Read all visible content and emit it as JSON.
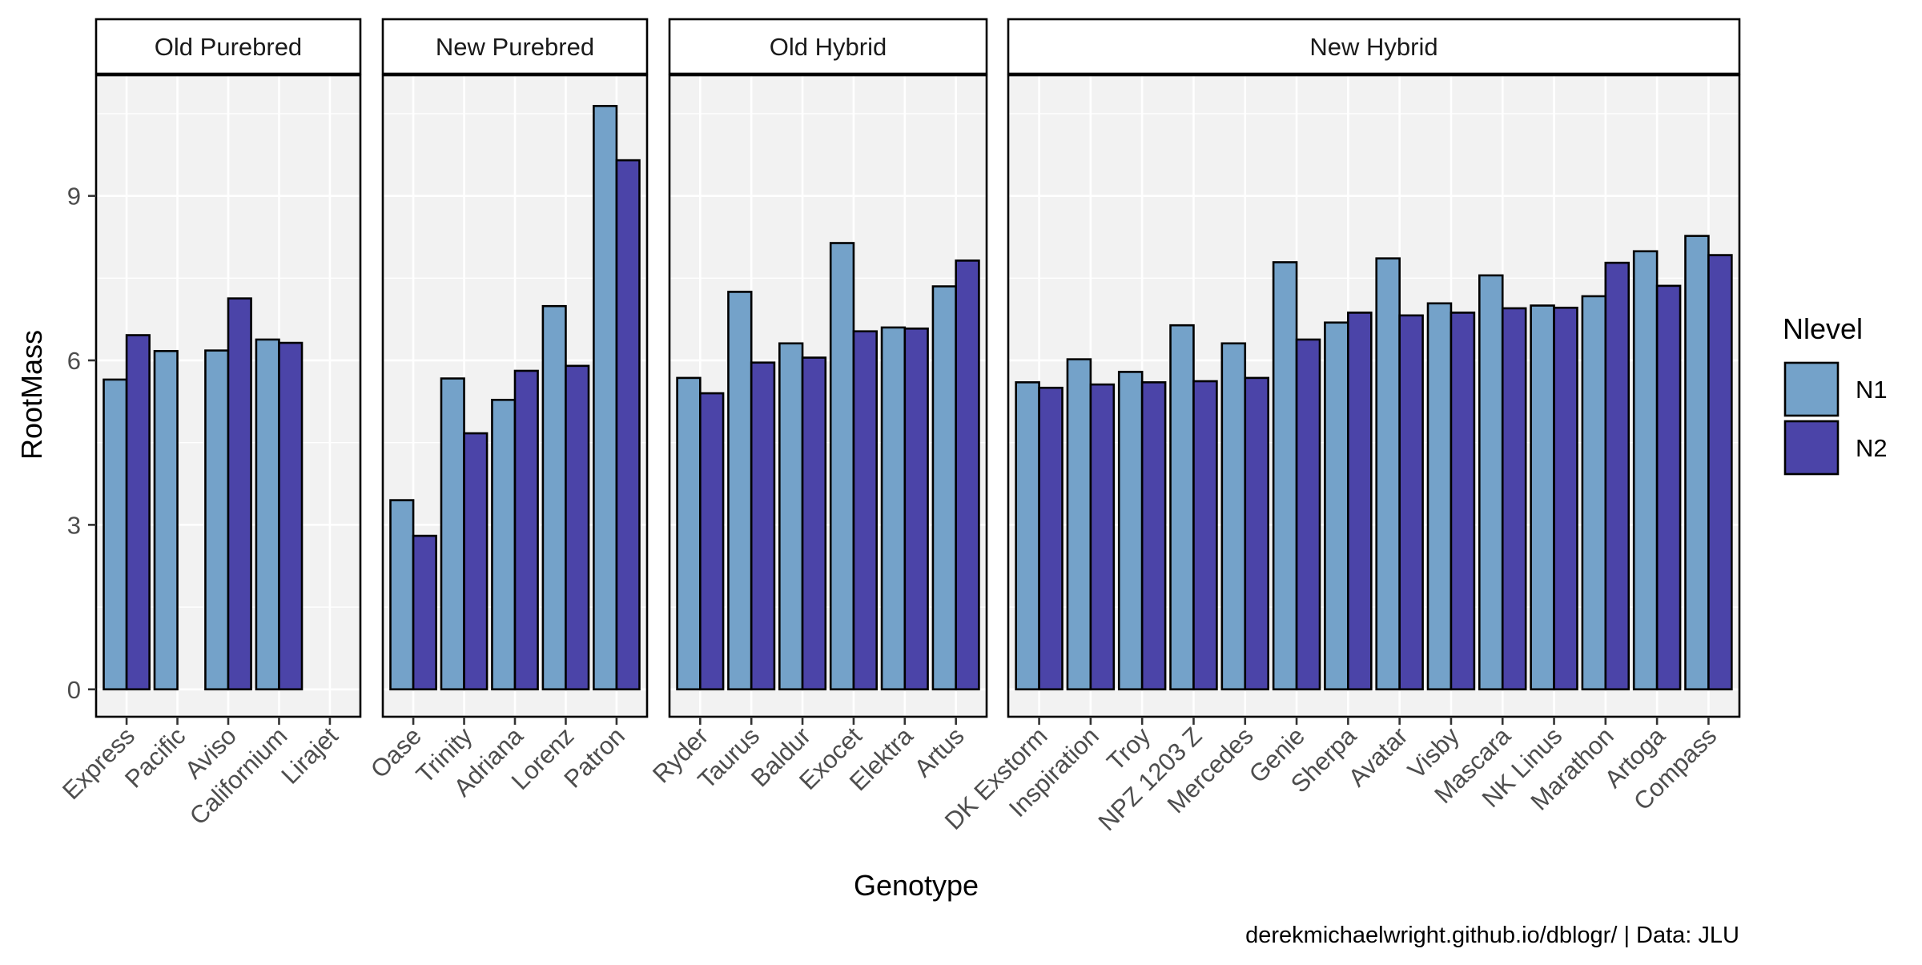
{
  "chart_data": {
    "type": "bar",
    "xlabel": "Genotype",
    "ylabel": "RootMass",
    "caption": "derekmichaelwright.github.io/dblogr/ | Data: JLU",
    "ylim": [
      -0.5,
      11.2
    ],
    "yticks": [
      0,
      3,
      6,
      9
    ],
    "grid": true,
    "legend": {
      "title": "Nlevel",
      "placement": "right",
      "entries": [
        {
          "name": "N1",
          "color": "#74A2C9"
        },
        {
          "name": "N2",
          "color": "#4B44A8"
        }
      ]
    },
    "panels": [
      {
        "title": "Old Purebred",
        "categories": [
          "Express",
          "Pacific",
          "Aviso",
          "Californium",
          "Lirajet"
        ],
        "series": [
          {
            "name": "N1",
            "values": [
              5.65,
              6.17,
              6.18,
              6.38,
              null
            ]
          },
          {
            "name": "N2",
            "values": [
              6.46,
              null,
              7.13,
              6.32,
              null
            ]
          }
        ]
      },
      {
        "title": "New Purebred",
        "categories": [
          "Oase",
          "Trinity",
          "Adriana",
          "Lorenz",
          "Patron"
        ],
        "series": [
          {
            "name": "N1",
            "values": [
              3.45,
              5.67,
              5.28,
              6.99,
              10.64
            ]
          },
          {
            "name": "N2",
            "values": [
              2.8,
              4.67,
              5.81,
              5.9,
              9.65
            ]
          }
        ]
      },
      {
        "title": "Old Hybrid",
        "categories": [
          "Ryder",
          "Taurus",
          "Baldur",
          "Exocet",
          "Elektra",
          "Artus"
        ],
        "series": [
          {
            "name": "N1",
            "values": [
              5.68,
              7.25,
              6.31,
              8.14,
              6.6,
              7.35
            ]
          },
          {
            "name": "N2",
            "values": [
              5.4,
              5.96,
              6.05,
              6.53,
              6.58,
              7.82
            ]
          }
        ]
      },
      {
        "title": "New Hybrid",
        "categories": [
          "DK Exstorm",
          "Inspiration",
          "Troy",
          "NPZ 1203 Z",
          "Mercedes",
          "Genie",
          "Sherpa",
          "Avatar",
          "Visby",
          "Mascara",
          "NK Linus",
          "Marathon",
          "Artoga",
          "Compass"
        ],
        "series": [
          {
            "name": "N1",
            "values": [
              5.6,
              6.02,
              5.79,
              6.64,
              6.31,
              7.79,
              6.69,
              7.86,
              7.04,
              7.55,
              7.0,
              7.17,
              7.99,
              8.27
            ]
          },
          {
            "name": "N2",
            "values": [
              5.5,
              5.56,
              5.6,
              5.62,
              5.68,
              6.38,
              6.87,
              6.82,
              6.87,
              6.95,
              6.96,
              7.78,
              7.36,
              7.92
            ]
          }
        ]
      }
    ]
  }
}
